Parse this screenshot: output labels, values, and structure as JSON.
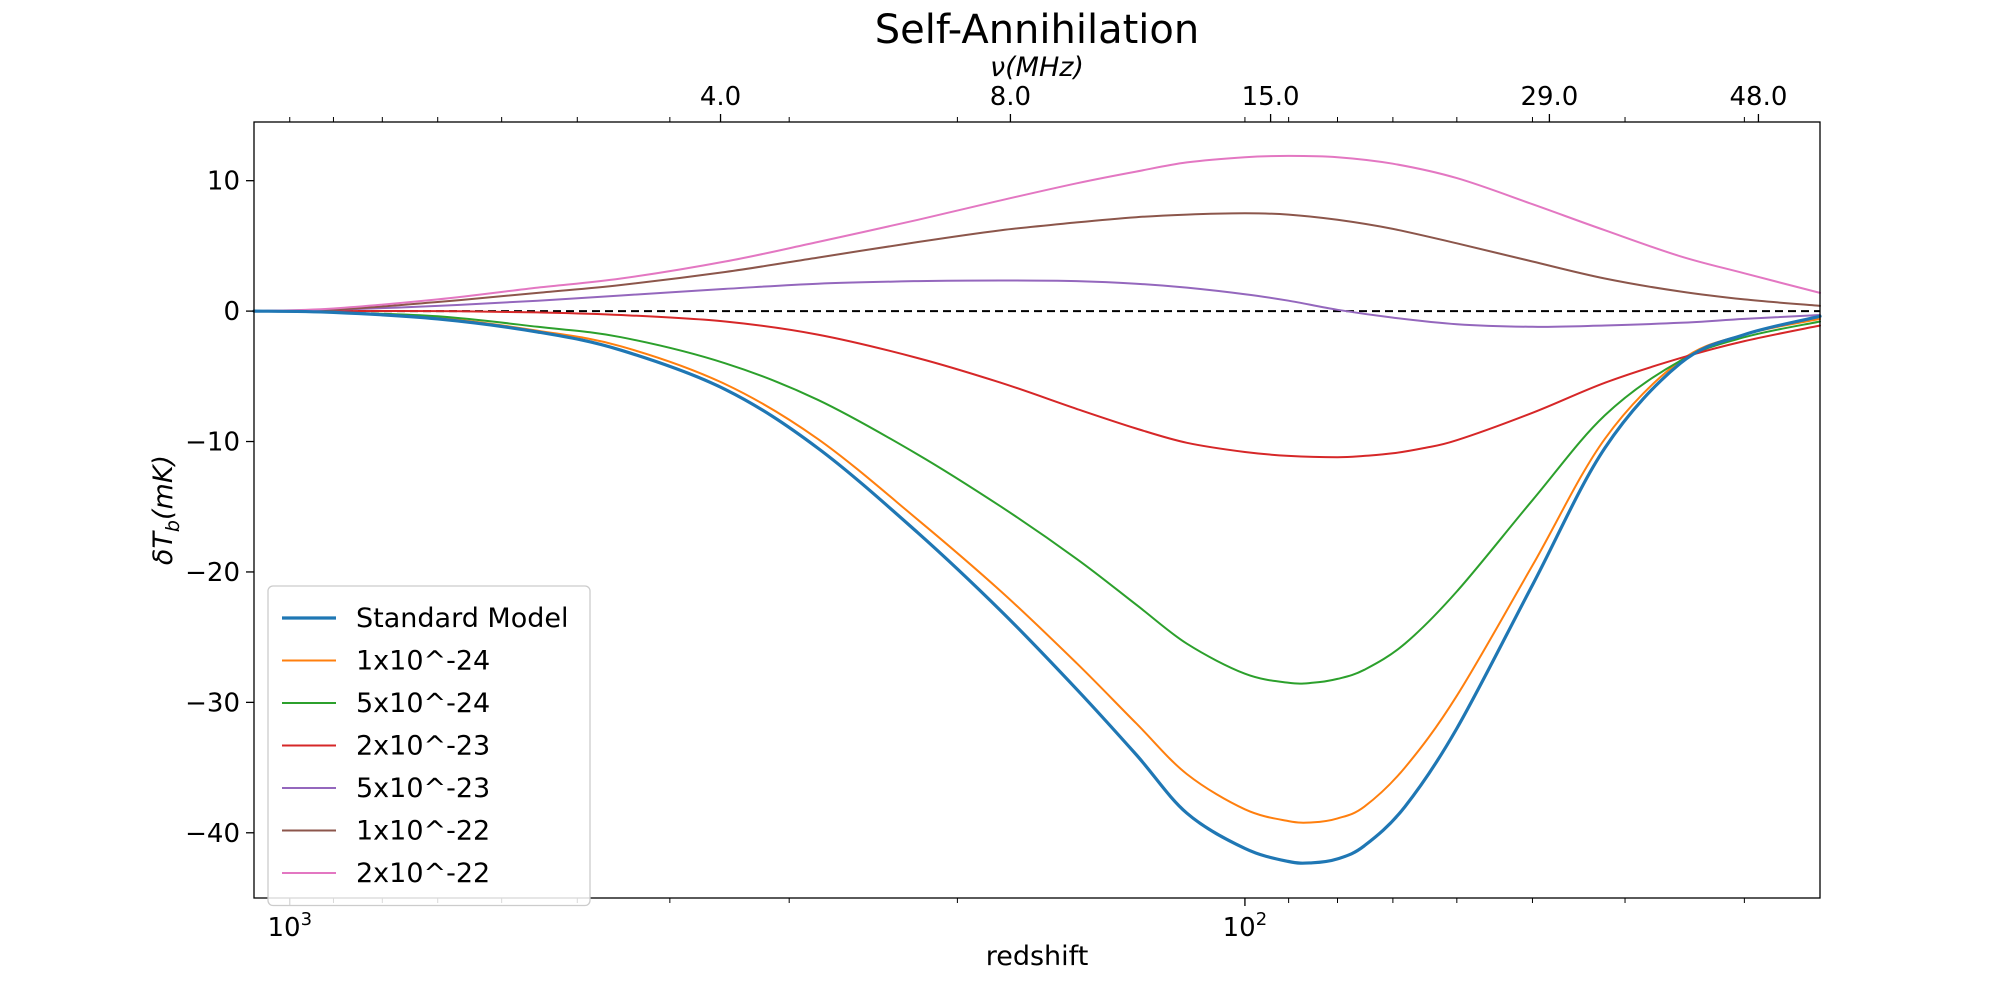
{
  "chart_data": {
    "type": "line",
    "title": "Self-Annihilation",
    "xlabel": "redshift",
    "ylabel_main": "δT",
    "ylabel_sub": "b",
    "ylabel_unit": "(mK)",
    "top_axis_label": "ν(MHz)",
    "x_scale": "log",
    "x_reversed": true,
    "xlim": [
      1090,
      25
    ],
    "ylim": [
      -45,
      14.5
    ],
    "y_ticks": [
      -40,
      -30,
      -20,
      -10,
      0,
      10
    ],
    "y_tick_labels": [
      "−40",
      "−30",
      "−20",
      "−10",
      "0",
      "10"
    ],
    "x_major_ticks": [
      {
        "value": 1000,
        "base": "10",
        "exp": "3"
      },
      {
        "value": 100,
        "base": "10",
        "exp": "2"
      }
    ],
    "top_ticks": [
      {
        "value": 354,
        "label": "4.0"
      },
      {
        "value": 176,
        "label": "8.0"
      },
      {
        "value": 94,
        "label": "15.0"
      },
      {
        "value": 48,
        "label": "29.0"
      },
      {
        "value": 29,
        "label": "48.0"
      }
    ],
    "reference_line": {
      "y": 0,
      "style": "dashed",
      "color": "#000000"
    },
    "legend_position": "lower-left",
    "series": [
      {
        "name": "Standard Model",
        "color": "#1f77b4",
        "width": 3.2,
        "x": [
          1090,
          900,
          700,
          550,
          450,
          350,
          280,
          220,
          180,
          150,
          130,
          115,
          100,
          90,
          85,
          80,
          75,
          68,
          60,
          50,
          42,
          35,
          30,
          25
        ],
        "y": [
          0,
          -0.1,
          -0.6,
          -1.6,
          -3.0,
          -6.0,
          -10.5,
          -17.0,
          -23.0,
          -29.0,
          -34.0,
          -38.5,
          -41.2,
          -42.2,
          -42.3,
          -42.0,
          -41.0,
          -38.0,
          -32.0,
          -21.0,
          -10.5,
          -4.0,
          -1.8,
          -0.4
        ]
      },
      {
        "name": "1x10^-24",
        "color": "#ff7f0e",
        "width": 2,
        "x": [
          1090,
          900,
          700,
          550,
          450,
          350,
          280,
          220,
          180,
          150,
          130,
          115,
          100,
          90,
          85,
          80,
          75,
          68,
          60,
          50,
          42,
          35,
          30,
          25
        ],
        "y": [
          0,
          -0.1,
          -0.5,
          -1.5,
          -2.7,
          -5.6,
          -9.8,
          -16.0,
          -21.5,
          -27.0,
          -31.6,
          -35.5,
          -38.2,
          -39.1,
          -39.2,
          -38.9,
          -38.0,
          -35.0,
          -29.5,
          -19.5,
          -9.8,
          -3.8,
          -1.8,
          -0.6
        ]
      },
      {
        "name": "5x10^-24",
        "color": "#2ca02c",
        "width": 2,
        "x": [
          1090,
          900,
          700,
          550,
          450,
          350,
          280,
          220,
          180,
          150,
          130,
          115,
          100,
          90,
          85,
          80,
          75,
          68,
          60,
          50,
          42,
          35,
          30,
          25
        ],
        "y": [
          0,
          -0.1,
          -0.4,
          -1.2,
          -2.0,
          -4.0,
          -6.8,
          -11.0,
          -15.0,
          -19.0,
          -22.5,
          -25.5,
          -27.8,
          -28.5,
          -28.5,
          -28.2,
          -27.5,
          -25.5,
          -21.5,
          -14.5,
          -8.0,
          -3.8,
          -2.0,
          -0.8
        ]
      },
      {
        "name": "2x10^-23",
        "color": "#d62728",
        "width": 2,
        "x": [
          1090,
          900,
          700,
          550,
          450,
          350,
          280,
          220,
          180,
          150,
          130,
          115,
          100,
          90,
          80,
          75,
          70,
          65,
          60,
          50,
          42,
          35,
          30,
          25
        ],
        "y": [
          0,
          0,
          0,
          -0.1,
          -0.3,
          -0.8,
          -1.8,
          -3.6,
          -5.5,
          -7.5,
          -9.0,
          -10.1,
          -10.8,
          -11.1,
          -11.2,
          -11.1,
          -10.9,
          -10.5,
          -9.9,
          -7.8,
          -5.5,
          -3.6,
          -2.3,
          -1.1
        ]
      },
      {
        "name": "5x10^-23",
        "color": "#9467bd",
        "width": 2,
        "x": [
          1090,
          900,
          700,
          550,
          450,
          350,
          280,
          220,
          180,
          150,
          130,
          115,
          100,
          90,
          80,
          70,
          60,
          50,
          42,
          35,
          30,
          25
        ],
        "y": [
          0,
          0.1,
          0.4,
          0.8,
          1.2,
          1.7,
          2.1,
          2.3,
          2.35,
          2.3,
          2.1,
          1.8,
          1.3,
          0.8,
          0.1,
          -0.5,
          -1.0,
          -1.2,
          -1.1,
          -0.9,
          -0.6,
          -0.3
        ]
      },
      {
        "name": "1x10^-22",
        "color": "#8c564b",
        "width": 2,
        "x": [
          1090,
          900,
          700,
          550,
          450,
          350,
          280,
          220,
          180,
          150,
          130,
          115,
          100,
          90,
          80,
          70,
          60,
          50,
          42,
          35,
          30,
          25
        ],
        "y": [
          0,
          0.1,
          0.7,
          1.4,
          2.0,
          3.0,
          4.1,
          5.3,
          6.2,
          6.8,
          7.2,
          7.4,
          7.5,
          7.4,
          7.0,
          6.3,
          5.2,
          3.8,
          2.5,
          1.5,
          0.9,
          0.4
        ]
      },
      {
        "name": "2x10^-22",
        "color": "#e377c2",
        "width": 2,
        "x": [
          1090,
          900,
          700,
          550,
          450,
          350,
          280,
          220,
          180,
          150,
          130,
          115,
          100,
          90,
          80,
          70,
          60,
          50,
          42,
          35,
          30,
          25
        ],
        "y": [
          0,
          0.2,
          0.9,
          1.8,
          2.5,
          3.8,
          5.3,
          7.0,
          8.5,
          9.8,
          10.7,
          11.4,
          11.8,
          11.9,
          11.8,
          11.3,
          10.2,
          8.2,
          6.2,
          4.2,
          2.9,
          1.4
        ]
      }
    ]
  }
}
